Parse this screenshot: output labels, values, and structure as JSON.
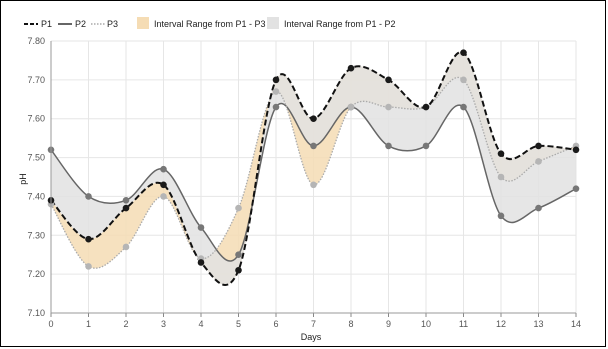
{
  "chart_data": {
    "type": "line",
    "xlabel": "Days",
    "ylabel": "pH",
    "x": [
      0,
      1,
      2,
      3,
      4,
      5,
      6,
      7,
      8,
      9,
      10,
      11,
      12,
      13,
      14
    ],
    "xlim": [
      0,
      14
    ],
    "ylim": [
      7.1,
      7.8
    ],
    "yticks": [
      "7.10",
      "7.20",
      "7.30",
      "7.40",
      "7.50",
      "7.60",
      "7.70",
      "7.80"
    ],
    "xticks": [
      "0",
      "1",
      "2",
      "3",
      "4",
      "5",
      "6",
      "7",
      "8",
      "9",
      "10",
      "11",
      "12",
      "13",
      "14"
    ],
    "grid": true,
    "legend_position": "top-left",
    "series": [
      {
        "name": "P1",
        "style": "dashed",
        "color": "#111111",
        "values": [
          7.39,
          7.29,
          7.37,
          7.43,
          7.23,
          7.21,
          7.7,
          7.6,
          7.73,
          7.7,
          7.63,
          7.77,
          7.51,
          7.53,
          7.52
        ]
      },
      {
        "name": "P2",
        "style": "solid",
        "color": "#666666",
        "values": [
          7.52,
          7.4,
          7.39,
          7.47,
          7.32,
          7.25,
          7.63,
          7.53,
          7.63,
          7.53,
          7.53,
          7.63,
          7.35,
          7.37,
          7.42
        ]
      },
      {
        "name": "P3",
        "style": "dotted",
        "color": "#aaaaaa",
        "values": [
          7.38,
          7.22,
          7.27,
          7.4,
          7.24,
          7.37,
          7.67,
          7.43,
          7.63,
          7.63,
          7.63,
          7.7,
          7.45,
          7.49,
          7.53
        ]
      }
    ],
    "bands": [
      {
        "name": "Interval Range from P1 - P3",
        "between": [
          "P1",
          "P3"
        ],
        "color": "#f5dcb4"
      },
      {
        "name": "Interval Range from P1 - P2",
        "between": [
          "P1",
          "P2"
        ],
        "color": "#e2e2e2"
      }
    ]
  }
}
